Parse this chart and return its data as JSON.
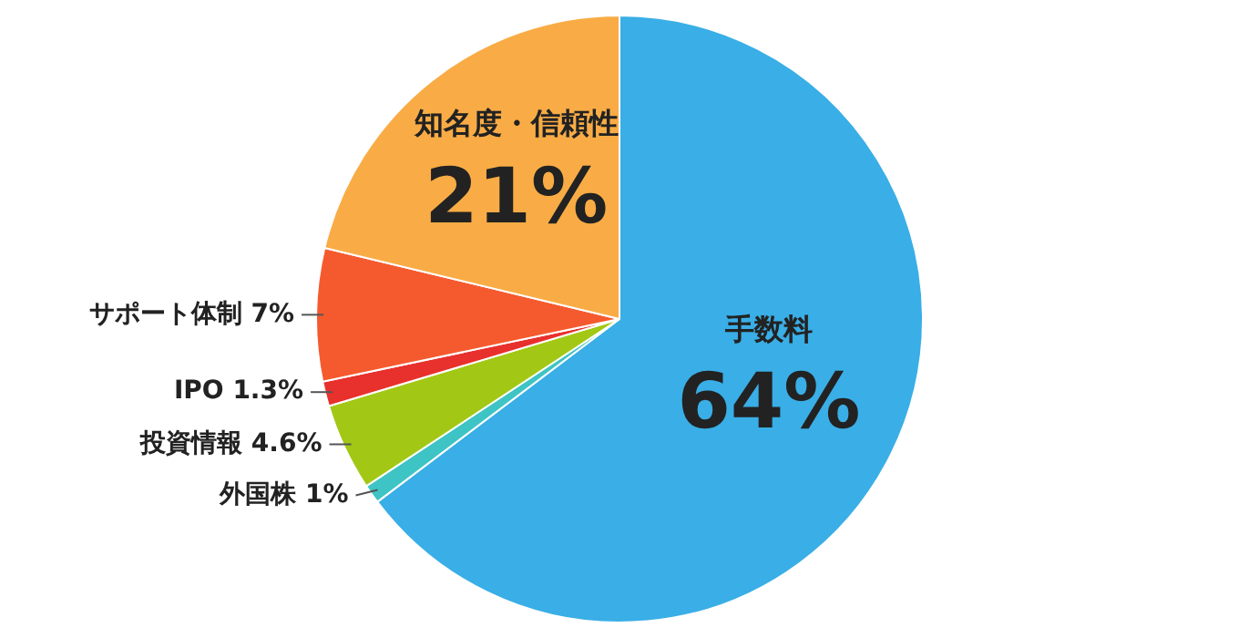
{
  "chart_data": {
    "type": "pie",
    "categories": [
      "手数料",
      "外国株",
      "投資情報",
      "IPO",
      "サポート体制",
      "知名度・信頼性"
    ],
    "values": [
      64,
      1,
      4.6,
      1.3,
      7,
      21
    ],
    "value_labels": [
      "64%",
      "1%",
      "4.6%",
      "1.3%",
      "7%",
      "21%"
    ],
    "colors": [
      "#3aaee6",
      "#3ec4c4",
      "#a2c815",
      "#e8302c",
      "#f55a2e",
      "#f9ac45"
    ],
    "legend": false
  }
}
